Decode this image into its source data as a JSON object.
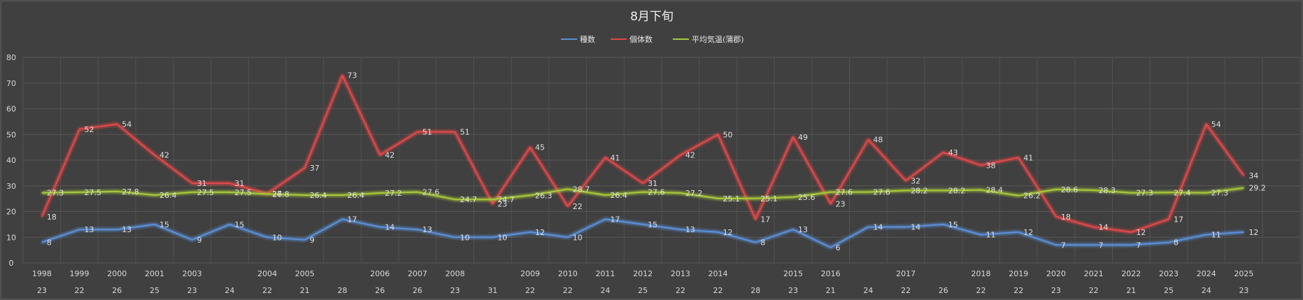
{
  "chart_data": {
    "type": "line",
    "title": "8月下旬",
    "legend_position": "top",
    "grid": true,
    "ylim": [
      0,
      80
    ],
    "yticks": [
      0,
      10,
      20,
      30,
      40,
      50,
      60,
      70,
      80
    ],
    "x_index": [
      0,
      1,
      2,
      3,
      4,
      5,
      6,
      7,
      8,
      9,
      10,
      11,
      12,
      13,
      14,
      15,
      16,
      17,
      18,
      19,
      20,
      21,
      22,
      23,
      24,
      25,
      26,
      27,
      28,
      29,
      30,
      31,
      32,
      33
    ],
    "years": [
      "1998",
      "1999",
      "2000",
      "2001",
      "2003",
      "",
      "2004",
      "2005",
      "",
      "2006",
      "2007",
      "2008",
      "",
      "2009",
      "2010",
      "2011",
      "2012",
      "2013",
      "2014",
      "",
      "2015",
      "2016",
      "",
      "2017",
      "",
      "2018",
      "2019",
      "2020",
      "2021",
      "2022",
      "2023",
      "2024",
      "2025",
      ""
    ],
    "days": [
      "23",
      "22",
      "26",
      "25",
      "23",
      "24",
      "22",
      "21",
      "28",
      "26",
      "26",
      "23",
      "31",
      "22",
      "22",
      "24",
      "25",
      "22",
      "22",
      "28",
      "23",
      "21",
      "24",
      "22",
      "26",
      "22",
      "22",
      "23",
      "22",
      "21",
      "25",
      "24",
      "23",
      ""
    ],
    "series": [
      {
        "name": "種数",
        "color": "#5b8fd6",
        "values": [
          8,
          13,
          13,
          15,
          9,
          15,
          10,
          9,
          17,
          14,
          13,
          10,
          10,
          12,
          10,
          17,
          15,
          13,
          12,
          8,
          13,
          6,
          14,
          14,
          15,
          11,
          12,
          7,
          7,
          7,
          8,
          11,
          12,
          null
        ]
      },
      {
        "name": "個体数",
        "color": "#e04848",
        "values": [
          18,
          52,
          54,
          42,
          31,
          31,
          27,
          37,
          73,
          42,
          51,
          51,
          23,
          45,
          22,
          41,
          31,
          42,
          50,
          17,
          49,
          23,
          48,
          32,
          43,
          38,
          41,
          18,
          14,
          12,
          17,
          54,
          34,
          null
        ]
      },
      {
        "name": "平均気温(蒲郡)",
        "color": "#a8c83a",
        "values": [
          27.3,
          27.5,
          27.8,
          26.4,
          27.5,
          27.5,
          26.8,
          26.4,
          26.4,
          27.2,
          27.6,
          24.7,
          24.7,
          26.3,
          28.7,
          26.4,
          27.6,
          27.2,
          25.1,
          25.1,
          25.6,
          27.6,
          27.6,
          28.2,
          28.2,
          28.4,
          26.2,
          28.6,
          28.3,
          27.3,
          27.4,
          27.3,
          29.2,
          null
        ]
      }
    ],
    "data_labels": {
      "種数": [
        "8",
        "13",
        "13",
        "15",
        "9",
        "15",
        "10",
        "9",
        "17",
        "14",
        "13",
        "10",
        "10",
        "12",
        "10",
        "17",
        "15",
        "13",
        "12",
        "8",
        "13",
        "6",
        "14",
        "14",
        "15",
        "11",
        "12",
        "7",
        "7",
        "7",
        "8",
        "11",
        "12",
        ""
      ],
      "個体数": [
        "18",
        "52",
        "54",
        "42",
        "31",
        "31",
        "27",
        "37",
        "73",
        "42",
        "51",
        "51",
        "23",
        "45",
        "22",
        "41",
        "31",
        "42",
        "50",
        "17",
        "49",
        "23",
        "48",
        "32",
        "43",
        "38",
        "41",
        "18",
        "14",
        "12",
        "17",
        "54",
        "34",
        ""
      ],
      "平均気温(蒲郡)": [
        "27.3",
        "27.5",
        "27.8",
        "26.4",
        "27.5",
        "27.5",
        "26.8",
        "26.4",
        "26.4",
        "27.2",
        "27.6",
        "24.7",
        "24.7",
        "26.3",
        "28.7",
        "26.4",
        "27.6",
        "27.2",
        "25.1",
        "25.1",
        "25.6",
        "27.6",
        "27.6",
        "28.2",
        "28.2",
        "28.4",
        "26.2",
        "28.6",
        "28.3",
        "27.3",
        "27.4",
        "27.3",
        "29.2",
        ""
      ]
    }
  }
}
